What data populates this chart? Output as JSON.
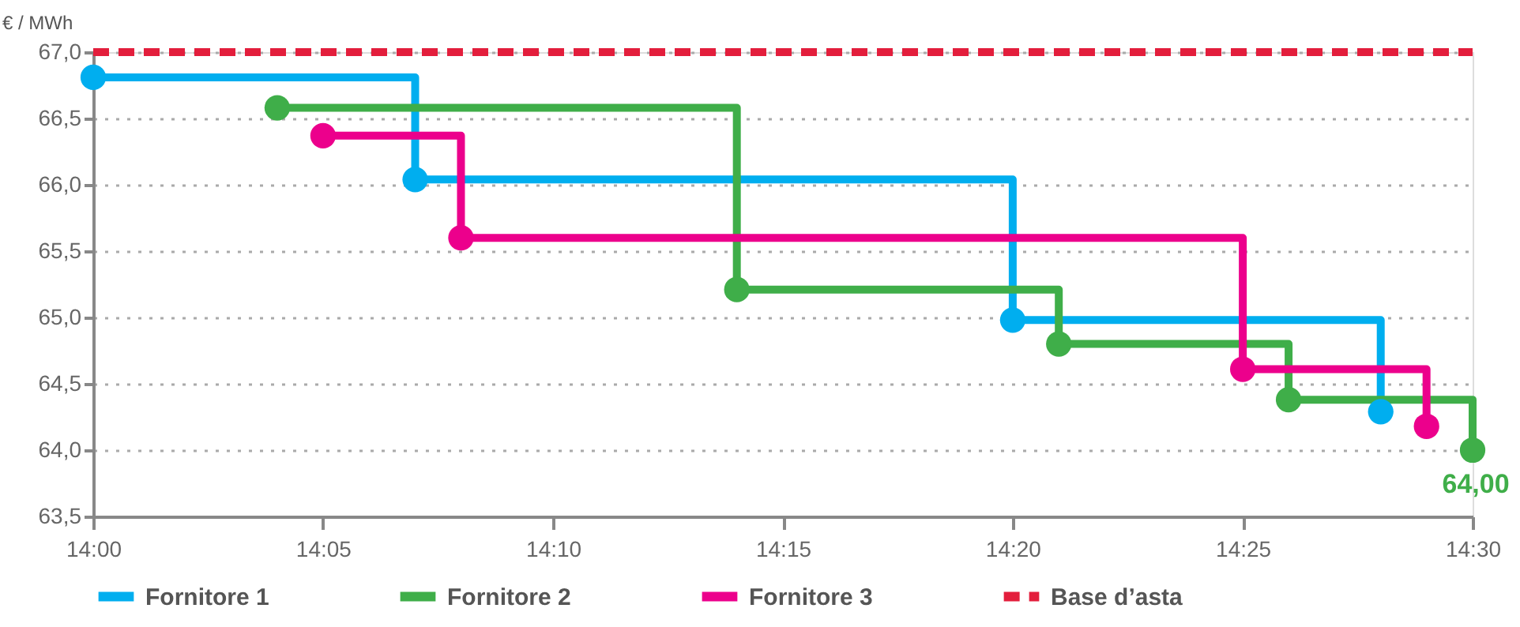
{
  "chart_data": {
    "type": "step",
    "ylabel": "€ / MWh",
    "xlim": [
      14.0,
      14.5
    ],
    "xticks": [
      {
        "value": 14.0,
        "label": "14:00"
      },
      {
        "value": 14.0833,
        "label": "14:05"
      },
      {
        "value": 14.1667,
        "label": "14:10"
      },
      {
        "value": 14.25,
        "label": "14:15"
      },
      {
        "value": 14.3333,
        "label": "14:20"
      },
      {
        "value": 14.4167,
        "label": "14:25"
      },
      {
        "value": 14.5,
        "label": "14:30"
      }
    ],
    "ylim": [
      63.5,
      67.0
    ],
    "yticks": [
      {
        "value": 63.5,
        "label": "63,5"
      },
      {
        "value": 64.0,
        "label": "64,0"
      },
      {
        "value": 64.5,
        "label": "64,5"
      },
      {
        "value": 65.0,
        "label": "65,0"
      },
      {
        "value": 65.5,
        "label": "65,5"
      },
      {
        "value": 66.0,
        "label": "66,0"
      },
      {
        "value": 66.5,
        "label": "66,5"
      },
      {
        "value": 67.0,
        "label": "67,0"
      }
    ],
    "series": [
      {
        "name": "Fornitore 1",
        "color": "#00aeef",
        "x": [
          14.0,
          14.1167,
          14.3333,
          14.4667
        ],
        "values": [
          66.81,
          66.04,
          64.98,
          64.29
        ]
      },
      {
        "name": "Fornitore 2",
        "color": "#3fae49",
        "x": [
          14.0667,
          14.2333,
          14.35,
          14.4333,
          14.5
        ],
        "values": [
          66.58,
          65.21,
          64.8,
          64.38,
          64.0
        ]
      },
      {
        "name": "Fornitore 3",
        "color": "#ec008c",
        "x": [
          14.0833,
          14.1333,
          14.4167,
          14.4833
        ],
        "values": [
          66.37,
          65.6,
          64.61,
          64.18
        ]
      }
    ],
    "ref_lines": [
      {
        "axis": "y",
        "value": 67.0,
        "label": "Base d’asta",
        "color": "#e31e3c",
        "line_style": "dashed"
      }
    ],
    "annotations": [
      {
        "text": "64,00",
        "x": 14.5,
        "y": 64.0
      }
    ],
    "marker": "circle",
    "line_style": "solid",
    "grid": "y",
    "legend": "bottom"
  }
}
